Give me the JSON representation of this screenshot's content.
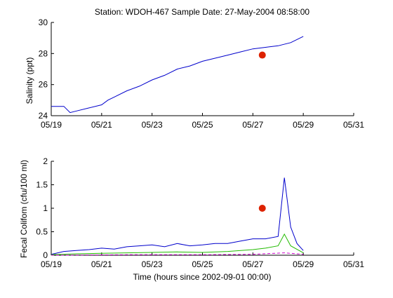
{
  "chart_data": [
    {
      "type": "line",
      "title": "Station: WDOH-467  Sample Date: 27-May-2004 08:58:00",
      "xlabel": "",
      "ylabel": "Salinity (ppt)",
      "xlim": [
        "05/19",
        "05/31"
      ],
      "ylim": [
        24,
        30
      ],
      "xticks": [
        "05/19",
        "05/21",
        "05/23",
        "05/25",
        "05/27",
        "05/29",
        "05/31"
      ],
      "yticks": [
        "24",
        "26",
        "28",
        "30"
      ],
      "grid": false,
      "series": [
        {
          "style": "line",
          "color": "#0000cc",
          "x": [
            "05/19 00:00",
            "05/19 12:00",
            "05/19 18:00",
            "05/20 00:00",
            "05/20 12:00",
            "05/21 00:00",
            "05/21 06:00",
            "05/21 12:00",
            "05/22 00:00",
            "05/22 12:00",
            "05/23 00:00",
            "05/23 12:00",
            "05/24 00:00",
            "05/24 12:00",
            "05/25 00:00",
            "05/25 12:00",
            "05/26 00:00",
            "05/26 12:00",
            "05/27 00:00",
            "05/27 12:00",
            "05/28 00:00",
            "05/28 12:00",
            "05/29 00:00"
          ],
          "values": [
            24.6,
            24.6,
            24.2,
            24.3,
            24.5,
            24.7,
            25.0,
            25.2,
            25.6,
            25.9,
            26.3,
            26.6,
            27.0,
            27.2,
            27.5,
            27.7,
            27.9,
            28.1,
            28.3,
            28.4,
            28.5,
            28.7,
            29.1
          ]
        },
        {
          "style": "marker",
          "color": "#dd2200",
          "x": [
            "05/27 08:58"
          ],
          "values": [
            27.9
          ]
        }
      ]
    },
    {
      "type": "line",
      "title": "",
      "xlabel": "Time (hours since 2002-09-01 00:00)",
      "ylabel": "Fecal Colifom (cfu/100 ml)",
      "xlim": [
        "05/19",
        "05/31"
      ],
      "ylim": [
        0,
        2
      ],
      "xticks": [
        "05/19",
        "05/21",
        "05/23",
        "05/25",
        "05/27",
        "05/29",
        "05/31"
      ],
      "yticks": [
        "0",
        "0.5",
        "1",
        "1.5",
        "2"
      ],
      "grid": false,
      "series": [
        {
          "style": "line",
          "color": "#0000cc",
          "x": [
            "05/19 00:00",
            "05/19 12:00",
            "05/20 00:00",
            "05/20 12:00",
            "05/21 00:00",
            "05/21 12:00",
            "05/22 00:00",
            "05/22 12:00",
            "05/23 00:00",
            "05/23 12:00",
            "05/24 00:00",
            "05/24 12:00",
            "05/25 00:00",
            "05/25 12:00",
            "05/26 00:00",
            "05/26 12:00",
            "05/27 00:00",
            "05/27 12:00",
            "05/28 00:00",
            "05/28 06:00",
            "05/28 12:00",
            "05/28 18:00",
            "05/29 00:00"
          ],
          "values": [
            0.02,
            0.08,
            0.1,
            0.12,
            0.15,
            0.13,
            0.18,
            0.2,
            0.22,
            0.18,
            0.25,
            0.2,
            0.22,
            0.25,
            0.25,
            0.3,
            0.35,
            0.35,
            0.4,
            1.65,
            0.6,
            0.25,
            0.1
          ]
        },
        {
          "style": "line",
          "color": "#22bb00",
          "x": [
            "05/19 00:00",
            "05/20 00:00",
            "05/21 00:00",
            "05/22 00:00",
            "05/23 00:00",
            "05/24 00:00",
            "05/25 00:00",
            "05/26 00:00",
            "05/27 00:00",
            "05/27 12:00",
            "05/28 00:00",
            "05/28 06:00",
            "05/28 12:00",
            "05/29 00:00"
          ],
          "values": [
            0.01,
            0.03,
            0.04,
            0.05,
            0.06,
            0.07,
            0.06,
            0.08,
            0.12,
            0.15,
            0.2,
            0.45,
            0.2,
            0.05
          ]
        },
        {
          "style": "dashed",
          "color": "#cc00cc",
          "x": [
            "05/19 00:00",
            "05/22 00:00",
            "05/25 00:00",
            "05/27 00:00",
            "05/28 06:00",
            "05/29 00:00"
          ],
          "values": [
            0.0,
            0.01,
            0.01,
            0.02,
            0.05,
            0.02
          ]
        },
        {
          "style": "marker",
          "color": "#dd2200",
          "x": [
            "05/27 08:58"
          ],
          "values": [
            1.0
          ]
        }
      ]
    }
  ]
}
